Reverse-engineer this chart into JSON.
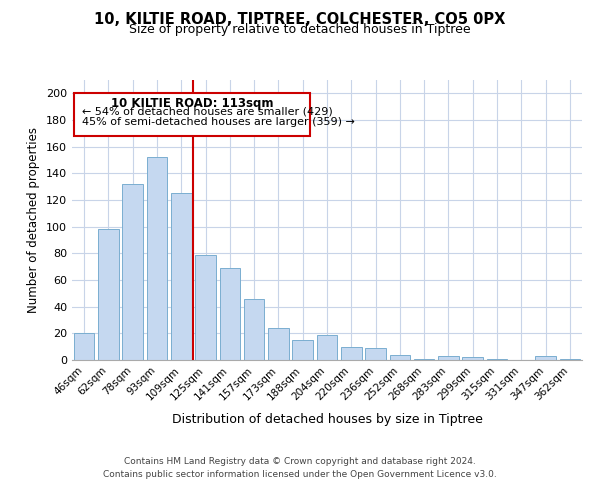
{
  "title": "10, KILTIE ROAD, TIPTREE, COLCHESTER, CO5 0PX",
  "subtitle": "Size of property relative to detached houses in Tiptree",
  "xlabel": "Distribution of detached houses by size in Tiptree",
  "ylabel": "Number of detached properties",
  "categories": [
    "46sqm",
    "62sqm",
    "78sqm",
    "93sqm",
    "109sqm",
    "125sqm",
    "141sqm",
    "157sqm",
    "173sqm",
    "188sqm",
    "204sqm",
    "220sqm",
    "236sqm",
    "252sqm",
    "268sqm",
    "283sqm",
    "299sqm",
    "315sqm",
    "331sqm",
    "347sqm",
    "362sqm"
  ],
  "values": [
    20,
    98,
    132,
    152,
    125,
    79,
    69,
    46,
    24,
    15,
    19,
    10,
    9,
    4,
    1,
    3,
    2,
    1,
    0,
    3,
    1
  ],
  "bar_color": "#c5d8f0",
  "bar_edge_color": "#7aaed0",
  "vline_color": "#cc0000",
  "vline_x_index": 5,
  "annotation_title": "10 KILTIE ROAD: 113sqm",
  "annotation_line1": "← 54% of detached houses are smaller (429)",
  "annotation_line2": "45% of semi-detached houses are larger (359) →",
  "annotation_box_color": "#cc0000",
  "annotation_text_color": "#000000",
  "ylim": [
    0,
    210
  ],
  "yticks": [
    0,
    20,
    40,
    60,
    80,
    100,
    120,
    140,
    160,
    180,
    200
  ],
  "footer_line1": "Contains HM Land Registry data © Crown copyright and database right 2024.",
  "footer_line2": "Contains public sector information licensed under the Open Government Licence v3.0.",
  "background_color": "#ffffff",
  "grid_color": "#c8d4e8"
}
